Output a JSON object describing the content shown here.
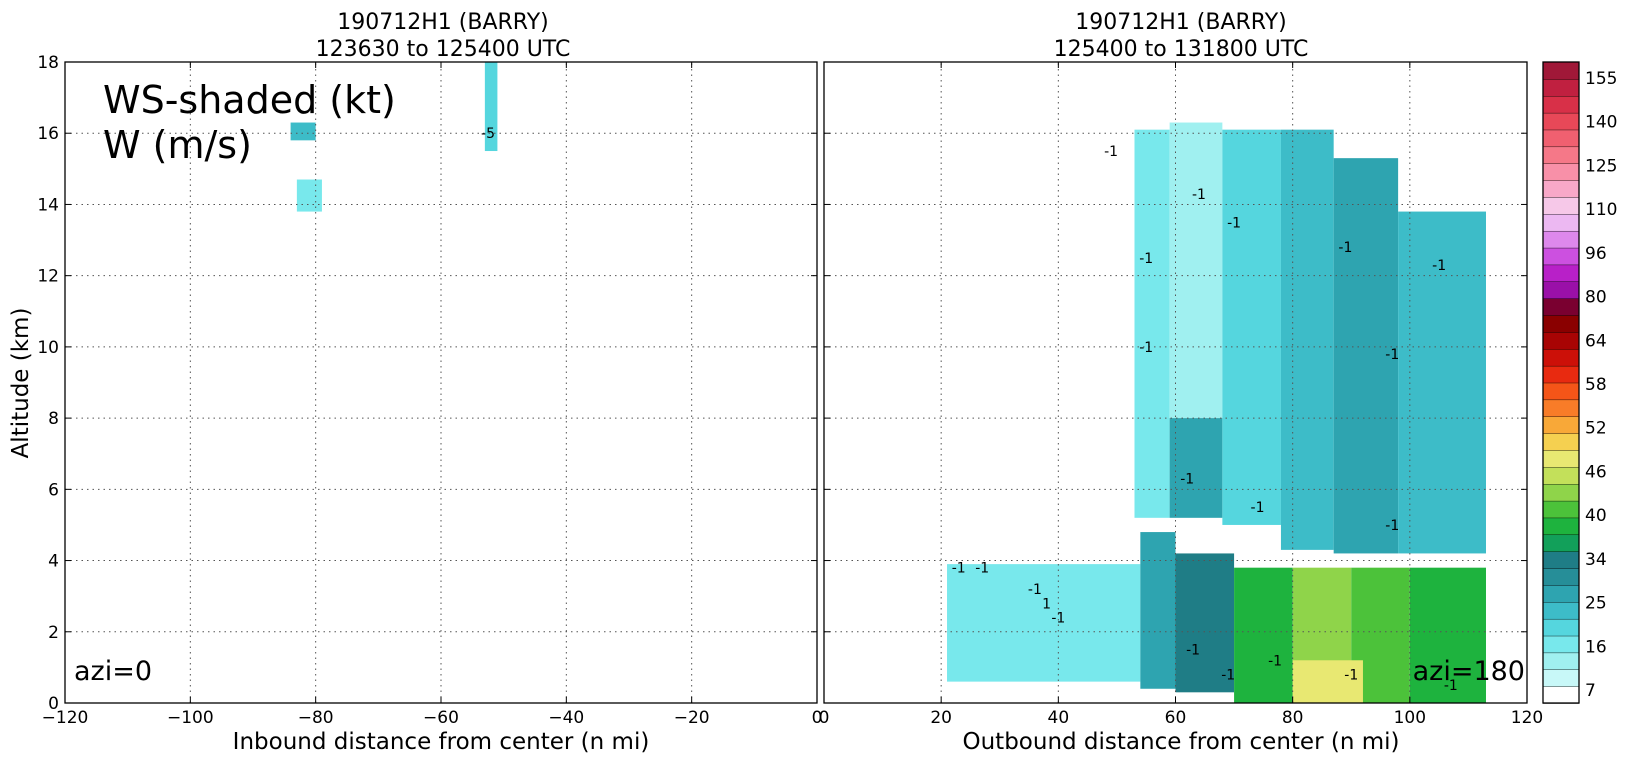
{
  "figure_labels": {
    "annotation_line1": "WS-shaded (kt)",
    "annotation_line2": "W (m/s)",
    "left_azi": "azi=0",
    "right_azi": "azi=180"
  },
  "colorbar": {
    "tick_labels": [
      "155",
      "140",
      "125",
      "110",
      "96",
      "80",
      "64",
      "58",
      "52",
      "46",
      "40",
      "34",
      "25",
      "16",
      "7"
    ],
    "colors": [
      "#ffffff",
      "#c8f8f8",
      "#a0f0f0",
      "#78e8ec",
      "#55d6de",
      "#3dbcc8",
      "#2ea4b0",
      "#268e98",
      "#1f7d86",
      "#12a05a",
      "#1eb33e",
      "#4cc23a",
      "#8fd44a",
      "#c3e05a",
      "#e8e872",
      "#f5d050",
      "#f8a838",
      "#f87c28",
      "#f55518",
      "#e82a10",
      "#cc1008",
      "#a80404",
      "#8a0000",
      "#7a0030",
      "#9a10a8",
      "#b820c8",
      "#cc50e0",
      "#dd88ec",
      "#ecb8f2",
      "#f6c8e8",
      "#f8a8c8",
      "#f890a8",
      "#f57888",
      "#f06070",
      "#e84858",
      "#d83048",
      "#c02040",
      "#a01838"
    ]
  },
  "chart_data": [
    {
      "type": "heatmap",
      "title": "190712H1 (BARRY)",
      "subtitle": "123630 to 125400 UTC",
      "xlabel": "Inbound distance from center (n mi)",
      "ylabel": "Altitude (km)",
      "xlim": [
        -120,
        0
      ],
      "ylim": [
        0,
        18
      ],
      "x_ticks": [
        "−120",
        "−100",
        "−80",
        "−60",
        "−40",
        "−20",
        "0"
      ],
      "y_ticks": [
        "0",
        "2",
        "4",
        "6",
        "8",
        "10",
        "12",
        "14",
        "16",
        "18"
      ],
      "grid": true,
      "shaded_variable_kt": [
        {
          "x": [
            -53,
            -51
          ],
          "y": [
            15.5,
            18.0
          ],
          "ws": 16
        },
        {
          "x": [
            -84,
            -80
          ],
          "y": [
            15.8,
            16.3
          ],
          "ws": 20
        },
        {
          "x": [
            -83,
            -79
          ],
          "y": [
            13.8,
            14.7
          ],
          "ws": 14
        }
      ],
      "contour_labels": [
        {
          "x": -52.5,
          "y": 16.0,
          "text": "-5"
        }
      ]
    },
    {
      "type": "heatmap",
      "title": "190712H1 (BARRY)",
      "subtitle": "125400 to 131800 UTC",
      "xlabel": "Outbound distance from center (n mi)",
      "ylabel": "",
      "xlim": [
        0,
        120
      ],
      "ylim": [
        0,
        18
      ],
      "x_ticks": [
        "0",
        "20",
        "40",
        "60",
        "80",
        "100",
        "120"
      ],
      "y_ticks": [
        "0",
        "2",
        "4",
        "6",
        "8",
        "10",
        "12",
        "14",
        "16",
        "18"
      ],
      "grid": true,
      "shaded_variable_kt": [
        {
          "x": [
            53,
            59
          ],
          "y": [
            5.2,
            16.1
          ],
          "ws": 14
        },
        {
          "x": [
            59,
            68
          ],
          "y": [
            8.0,
            16.3
          ],
          "ws": 9
        },
        {
          "x": [
            59,
            68
          ],
          "y": [
            5.2,
            8.0
          ],
          "ws": 24
        },
        {
          "x": [
            68,
            78
          ],
          "y": [
            5.0,
            16.1
          ],
          "ws": 18
        },
        {
          "x": [
            78,
            87
          ],
          "y": [
            4.3,
            16.1
          ],
          "ws": 22
        },
        {
          "x": [
            87,
            98
          ],
          "y": [
            4.2,
            15.3
          ],
          "ws": 24
        },
        {
          "x": [
            98,
            113
          ],
          "y": [
            4.2,
            13.8
          ],
          "ws": 19
        },
        {
          "x": [
            21,
            54
          ],
          "y": [
            0.6,
            3.9
          ],
          "ws": 13
        },
        {
          "x": [
            54,
            60
          ],
          "y": [
            0.4,
            4.8
          ],
          "ws": 24
        },
        {
          "x": [
            60,
            70
          ],
          "y": [
            0.3,
            4.2
          ],
          "ws": 35
        },
        {
          "x": [
            70,
            80
          ],
          "y": [
            0.0,
            3.8
          ],
          "ws": 42
        },
        {
          "x": [
            80,
            90
          ],
          "y": [
            0.0,
            3.8
          ],
          "ws": 50
        },
        {
          "x": [
            90,
            100
          ],
          "y": [
            0.0,
            3.8
          ],
          "ws": 46
        },
        {
          "x": [
            100,
            113
          ],
          "y": [
            0.0,
            3.8
          ],
          "ws": 40
        },
        {
          "x": [
            80,
            92
          ],
          "y": [
            0.0,
            1.2
          ],
          "ws": 58
        }
      ],
      "contour_labels": [
        {
          "x": 49,
          "y": 15.5,
          "text": "-1"
        },
        {
          "x": 64,
          "y": 14.3,
          "text": "-1"
        },
        {
          "x": 70,
          "y": 13.5,
          "text": "-1"
        },
        {
          "x": 55,
          "y": 12.5,
          "text": "-1"
        },
        {
          "x": 89,
          "y": 12.8,
          "text": "-1"
        },
        {
          "x": 105,
          "y": 12.3,
          "text": "-1"
        },
        {
          "x": 55,
          "y": 10.0,
          "text": "-1"
        },
        {
          "x": 97,
          "y": 9.8,
          "text": "-1"
        },
        {
          "x": 62,
          "y": 6.3,
          "text": "-1"
        },
        {
          "x": 74,
          "y": 5.5,
          "text": "-1"
        },
        {
          "x": 97,
          "y": 5.0,
          "text": "-1"
        },
        {
          "x": 23,
          "y": 3.8,
          "text": "-1"
        },
        {
          "x": 27,
          "y": 3.8,
          "text": "-1"
        },
        {
          "x": 36,
          "y": 3.2,
          "text": "-1"
        },
        {
          "x": 38,
          "y": 2.8,
          "text": "1"
        },
        {
          "x": 40,
          "y": 2.4,
          "text": "-1"
        },
        {
          "x": 63,
          "y": 1.5,
          "text": "-1"
        },
        {
          "x": 69,
          "y": 0.8,
          "text": "-1"
        },
        {
          "x": 77,
          "y": 1.2,
          "text": "-1"
        },
        {
          "x": 90,
          "y": 0.8,
          "text": "-1"
        },
        {
          "x": 107,
          "y": 0.5,
          "text": "-1"
        }
      ]
    }
  ]
}
